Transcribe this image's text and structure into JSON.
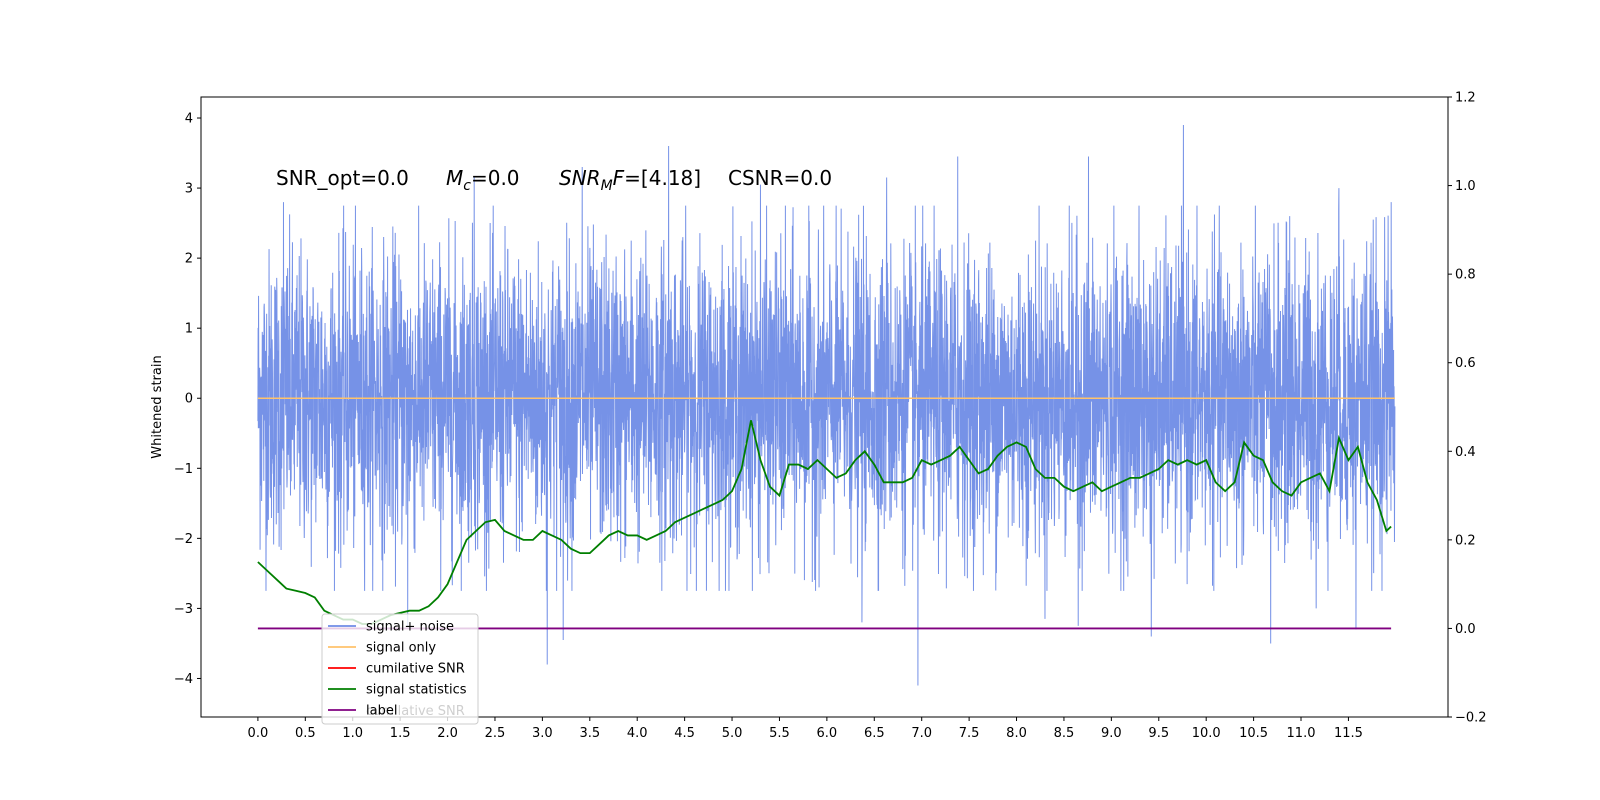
{
  "chart_data": {
    "type": "line",
    "ylabel": "Whitened strain",
    "xlim": [
      -0.6,
      12.55
    ],
    "ylim": [
      -4.55,
      4.3
    ],
    "y2lim": [
      -0.2,
      1.2
    ],
    "xticks": [
      "0.0",
      "0.5",
      "1.0",
      "1.5",
      "2.0",
      "2.5",
      "3.0",
      "3.5",
      "4.0",
      "4.5",
      "5.0",
      "5.5",
      "6.0",
      "6.5",
      "7.0",
      "7.5",
      "8.0",
      "8.5",
      "9.0",
      "9.5",
      "10.0",
      "10.5",
      "11.0",
      "11.5"
    ],
    "yticks": [
      "4",
      "3",
      "2",
      "1",
      "0",
      "−1",
      "−2",
      "−3",
      "−4"
    ],
    "y2ticks": [
      "1.2",
      "1.0",
      "0.8",
      "0.6",
      "0.4",
      "0.2",
      "0.0",
      "−0.2"
    ],
    "annotations": {
      "snr_opt": "SNR_opt=0.0",
      "mc_sym": "M",
      "mc_sub": "c",
      "mc_val": "=0.0",
      "snrmf_sym": "SNR",
      "snrmf_sub": "M",
      "snrmf_f": "F",
      "snrmf_val": "=[4.18]",
      "csnr": "CSNR=0.0"
    },
    "legend_position": "lower-left",
    "colors": {
      "signal_noise": "#6f8ce6",
      "signal_only": "#ffc36b",
      "cumulative": "#ff0000",
      "statistics": "#007f00",
      "label": "#800080"
    },
    "series": [
      {
        "name": "signal+ noise",
        "style": "dense noise trace, approx. zero-mean, std ~1.1, range -4.1 to 3.9",
        "peaks": [
          [
            0.27,
            2.8
          ],
          [
            2.28,
            3.15
          ],
          [
            3.42,
            3.3
          ],
          [
            4.33,
            3.6
          ],
          [
            5.3,
            3.05
          ],
          [
            6.63,
            3.15
          ],
          [
            7.38,
            3.45
          ],
          [
            8.76,
            3.45
          ],
          [
            9.76,
            3.9
          ],
          [
            10.88,
            2.6
          ],
          [
            11.4,
            3.0
          ],
          [
            11.95,
            2.8
          ]
        ],
        "troughs": [
          [
            1.58,
            -3.25
          ],
          [
            3.05,
            -3.8
          ],
          [
            3.22,
            -3.45
          ],
          [
            6.37,
            -3.2
          ],
          [
            6.96,
            -4.1
          ],
          [
            8.3,
            -3.15
          ],
          [
            8.65,
            -3.25
          ],
          [
            9.42,
            -3.4
          ],
          [
            10.68,
            -3.5
          ],
          [
            11.16,
            -3.0
          ],
          [
            11.58,
            -3.3
          ]
        ]
      },
      {
        "name": "signal only",
        "x": [
          0.0,
          11.99
        ],
        "y": [
          0.0,
          0.0
        ]
      },
      {
        "name": "cumilative SNR",
        "x": [],
        "y": []
      },
      {
        "name": "signal statistics",
        "axis": "right",
        "x": [
          0.0,
          0.1,
          0.2,
          0.3,
          0.4,
          0.5,
          0.6,
          0.7,
          0.8,
          0.9,
          1.0,
          1.1,
          1.2,
          1.3,
          1.4,
          1.5,
          1.6,
          1.7,
          1.8,
          1.9,
          2.0,
          2.1,
          2.2,
          2.3,
          2.4,
          2.5,
          2.6,
          2.7,
          2.8,
          2.9,
          3.0,
          3.1,
          3.2,
          3.3,
          3.4,
          3.5,
          3.6,
          3.7,
          3.8,
          3.9,
          4.0,
          4.1,
          4.2,
          4.3,
          4.4,
          4.5,
          4.6,
          4.7,
          4.8,
          4.9,
          5.0,
          5.1,
          5.2,
          5.3,
          5.4,
          5.5,
          5.6,
          5.7,
          5.8,
          5.9,
          6.0,
          6.1,
          6.2,
          6.3,
          6.4,
          6.5,
          6.6,
          6.7,
          6.8,
          6.9,
          7.0,
          7.1,
          7.2,
          7.3,
          7.4,
          7.5,
          7.6,
          7.7,
          7.8,
          7.9,
          8.0,
          8.1,
          8.2,
          8.3,
          8.4,
          8.5,
          8.6,
          8.7,
          8.8,
          8.9,
          9.0,
          9.1,
          9.2,
          9.3,
          9.4,
          9.5,
          9.6,
          9.7,
          9.8,
          9.9,
          10.0,
          10.1,
          10.2,
          10.3,
          10.4,
          10.5,
          10.6,
          10.7,
          10.8,
          10.9,
          11.0,
          11.1,
          11.2,
          11.3,
          11.4,
          11.5,
          11.6,
          11.7,
          11.8,
          11.9,
          11.95
        ],
        "y": [
          0.15,
          0.13,
          0.11,
          0.09,
          0.085,
          0.08,
          0.07,
          0.04,
          0.03,
          0.02,
          0.02,
          0.01,
          0.01,
          0.02,
          0.03,
          0.035,
          0.04,
          0.04,
          0.05,
          0.07,
          0.1,
          0.15,
          0.2,
          0.22,
          0.24,
          0.245,
          0.22,
          0.21,
          0.2,
          0.2,
          0.22,
          0.21,
          0.2,
          0.18,
          0.17,
          0.17,
          0.19,
          0.21,
          0.22,
          0.21,
          0.21,
          0.2,
          0.21,
          0.22,
          0.24,
          0.25,
          0.26,
          0.27,
          0.28,
          0.29,
          0.31,
          0.36,
          0.47,
          0.38,
          0.32,
          0.3,
          0.37,
          0.37,
          0.36,
          0.38,
          0.36,
          0.34,
          0.35,
          0.38,
          0.4,
          0.37,
          0.33,
          0.33,
          0.33,
          0.34,
          0.38,
          0.37,
          0.38,
          0.39,
          0.41,
          0.38,
          0.35,
          0.36,
          0.39,
          0.41,
          0.42,
          0.41,
          0.36,
          0.34,
          0.34,
          0.32,
          0.31,
          0.32,
          0.33,
          0.31,
          0.32,
          0.33,
          0.34,
          0.34,
          0.35,
          0.36,
          0.38,
          0.37,
          0.38,
          0.37,
          0.38,
          0.33,
          0.31,
          0.33,
          0.42,
          0.39,
          0.38,
          0.33,
          0.31,
          0.3,
          0.33,
          0.34,
          0.35,
          0.31,
          0.43,
          0.38,
          0.41,
          0.33,
          0.29,
          0.22,
          0.23
        ]
      },
      {
        "name": "label",
        "axis": "right",
        "x": [
          0.0,
          11.95
        ],
        "y": [
          0.0,
          0.0
        ]
      }
    ],
    "legend": [
      "signal+ noise",
      "signal only",
      "cumilative SNR",
      "signal statistics",
      "label"
    ],
    "legend_ghost_text": "cumilative SNR"
  }
}
